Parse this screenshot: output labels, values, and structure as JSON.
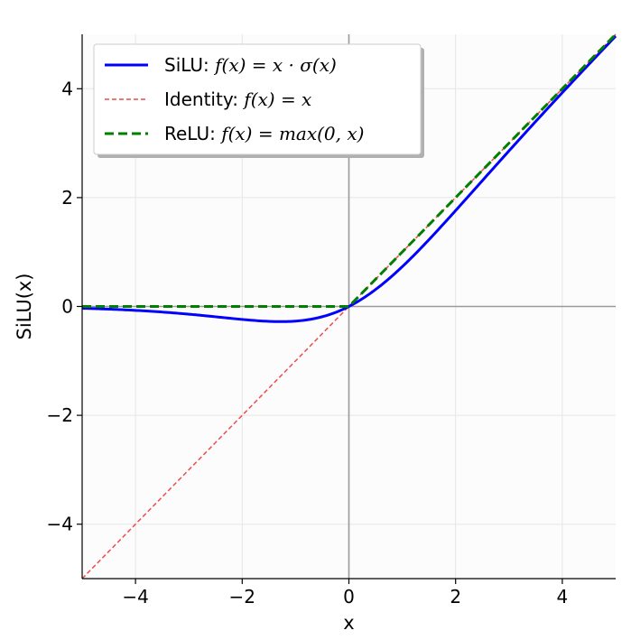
{
  "chart_data": {
    "type": "line",
    "xlabel": "x",
    "ylabel": "SiLU(x)",
    "xlim": [
      -5,
      5
    ],
    "ylim": [
      -5,
      5
    ],
    "xticks": [
      -4,
      -2,
      0,
      2,
      4
    ],
    "yticks": [
      -4,
      -2,
      0,
      2,
      4
    ],
    "xtick_labels": [
      "−4",
      "−2",
      "0",
      "2",
      "4"
    ],
    "ytick_labels": [
      "−4",
      "−2",
      "0",
      "2",
      "4"
    ],
    "grid": true,
    "reference_lines": [
      "x = 0",
      "y = 0"
    ],
    "legend_position": "top-left",
    "series": [
      {
        "name": "SiLU: f(x) = x · σ(x)",
        "label_prefix": "SiLU: ",
        "label_math": "f(x) = x · σ(x)",
        "color": "#0000ff",
        "style": "solid",
        "x": [
          -5,
          -4.5,
          -4,
          -3.5,
          -3,
          -2.5,
          -2,
          -1.5,
          -1.28,
          -1,
          -0.5,
          0,
          0.5,
          1,
          1.5,
          2,
          2.5,
          3,
          3.5,
          4,
          4.5,
          5
        ],
        "y": [
          -0.033,
          -0.049,
          -0.072,
          -0.102,
          -0.142,
          -0.189,
          -0.238,
          -0.27,
          -0.278,
          -0.269,
          -0.189,
          0,
          0.311,
          0.731,
          1.23,
          1.762,
          2.311,
          2.858,
          3.398,
          3.928,
          4.451,
          4.967
        ]
      },
      {
        "name": "Identity: f(x) = x",
        "label_prefix": "Identity: ",
        "label_math": "f(x) = x",
        "color": "#f04a4a",
        "style": "dashed",
        "x": [
          -5,
          5
        ],
        "y": [
          -5,
          5
        ]
      },
      {
        "name": "ReLU: f(x) = max(0, x)",
        "label_prefix": "ReLU: ",
        "label_math": "f(x) = max(0, x)",
        "color": "#007f00",
        "style": "dashed",
        "x": [
          -5,
          0,
          5
        ],
        "y": [
          0,
          0,
          5
        ]
      }
    ]
  }
}
